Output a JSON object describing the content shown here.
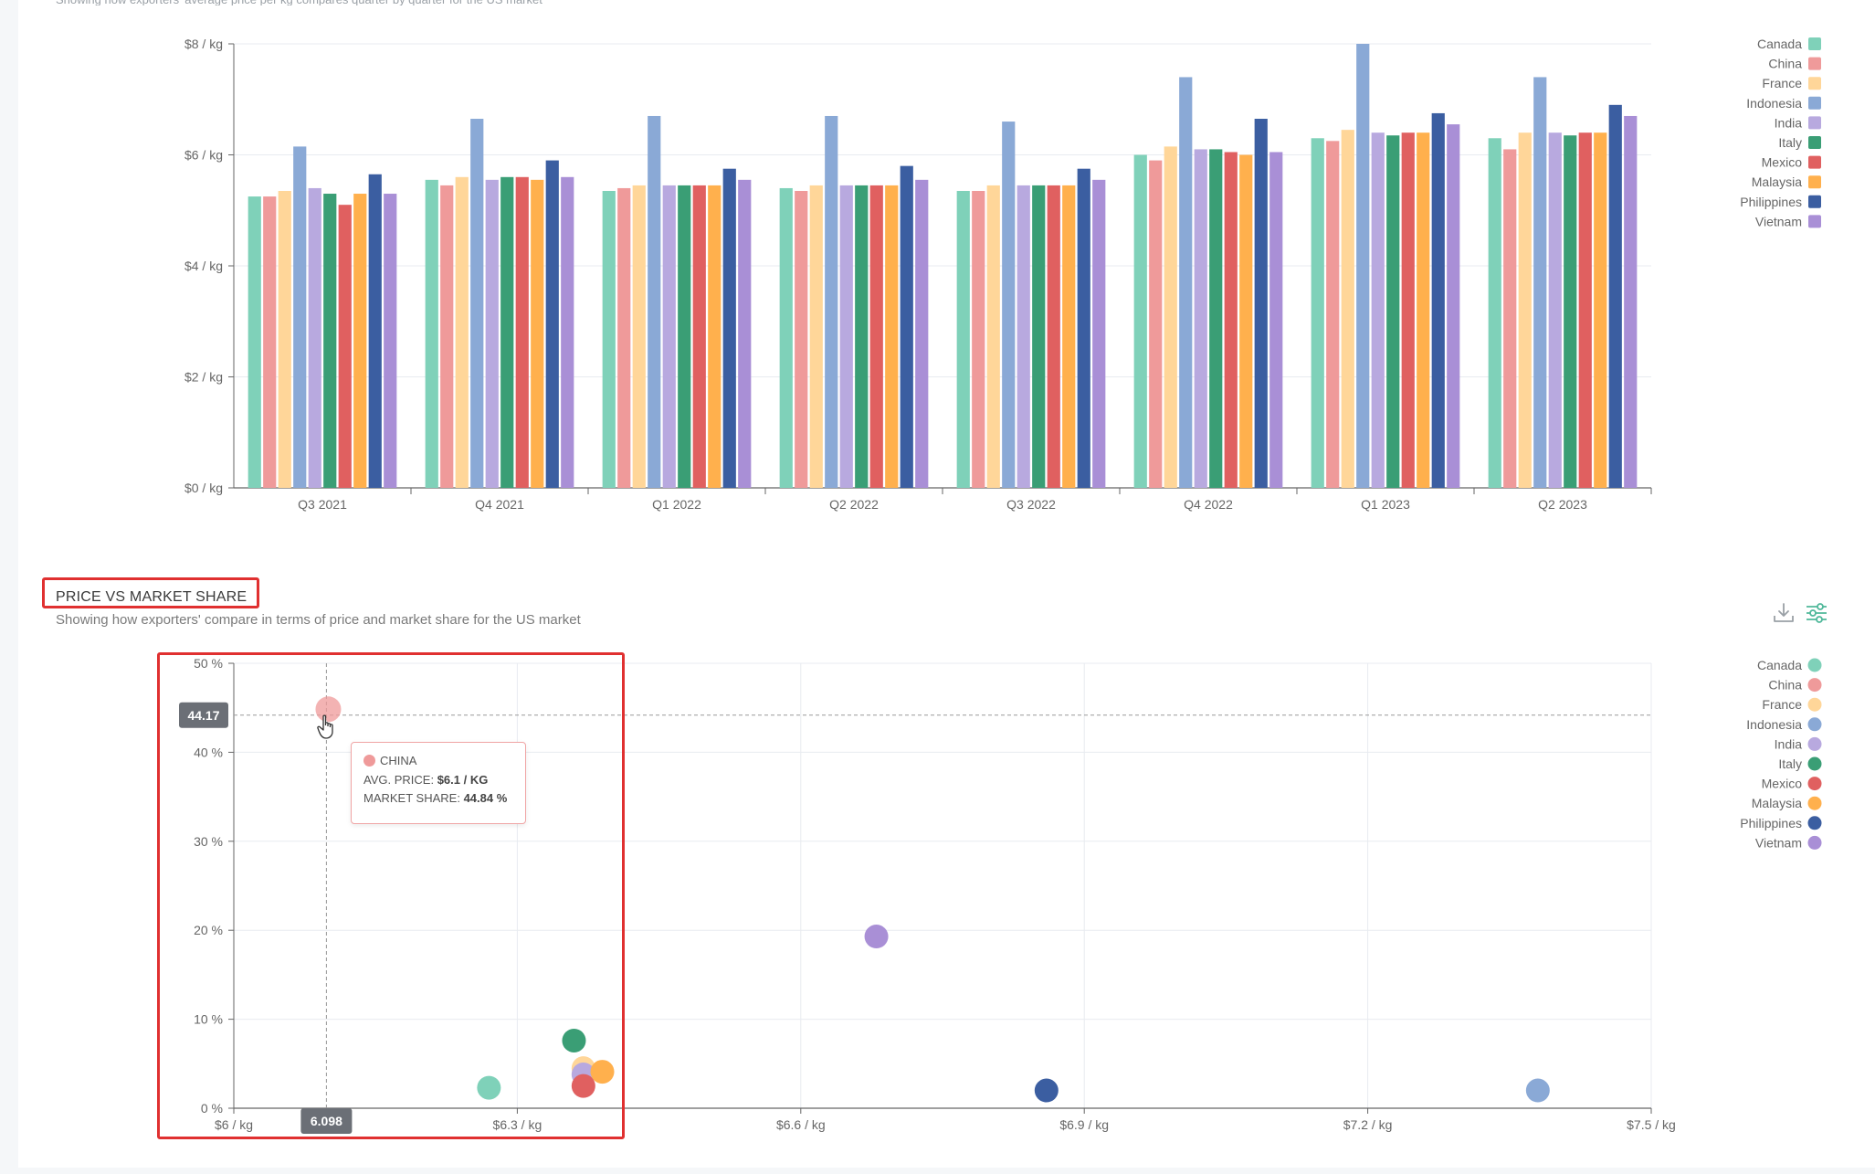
{
  "page": {
    "top_caption": "Showing how exporters' average price per kg compares quarter by quarter for the US market"
  },
  "countries": [
    {
      "name": "Canada",
      "color": "#7fd1b9"
    },
    {
      "name": "China",
      "color": "#ef9a9a"
    },
    {
      "name": "France",
      "color": "#ffd699"
    },
    {
      "name": "Indonesia",
      "color": "#8aa9d6"
    },
    {
      "name": "India",
      "color": "#b8a9df"
    },
    {
      "name": "Italy",
      "color": "#3a9e75"
    },
    {
      "name": "Mexico",
      "color": "#e06060"
    },
    {
      "name": "Malaysia",
      "color": "#ffb04d"
    },
    {
      "name": "Philippines",
      "color": "#3b5ea1"
    },
    {
      "name": "Vietnam",
      "color": "#a98fd6"
    }
  ],
  "bar_section": {
    "y_ticks": [
      "$0 / kg",
      "$2 / kg",
      "$4 / kg",
      "$6 / kg",
      "$8 / kg"
    ]
  },
  "scatter_section": {
    "title": "PRICE VS MARKET SHARE",
    "subtitle": "Showing how exporters' compare in terms of price and market share for the US market",
    "x_ticks": [
      "$6 / kg",
      "$6.3 / kg",
      "$6.6 / kg",
      "$6.9 / kg",
      "$7.2 / kg",
      "$7.5 / kg"
    ],
    "y_ticks": [
      "0 %",
      "10 %",
      "20 %",
      "30 %",
      "40 %",
      "50 %"
    ],
    "crosshair": {
      "x_label": "6.098",
      "y_label": "44.17"
    },
    "tooltip": {
      "country": "CHINA",
      "price_label": "AVG. PRICE:",
      "price_value": "$6.1 / KG",
      "share_label": "MARKET SHARE:",
      "share_value": "44.84 %"
    },
    "toolbar": {
      "download_icon": "download-icon",
      "settings_icon": "sliders-icon"
    }
  },
  "chart_data": [
    {
      "type": "bar",
      "categories": [
        "Q3 2021",
        "Q4 2021",
        "Q1 2022",
        "Q2 2022",
        "Q3 2022",
        "Q4 2022",
        "Q1 2023",
        "Q2 2023"
      ],
      "ylim": [
        0,
        8
      ],
      "grid": true,
      "legend": "right",
      "series": [
        {
          "name": "Canada",
          "values": [
            5.25,
            5.55,
            5.35,
            5.4,
            5.35,
            6.0,
            6.3,
            6.3
          ]
        },
        {
          "name": "China",
          "values": [
            5.25,
            5.45,
            5.4,
            5.35,
            5.35,
            5.9,
            6.25,
            6.1
          ]
        },
        {
          "name": "France",
          "values": [
            5.35,
            5.6,
            5.45,
            5.45,
            5.45,
            6.15,
            6.45,
            6.4
          ]
        },
        {
          "name": "Indonesia",
          "values": [
            6.15,
            6.65,
            6.7,
            6.7,
            6.6,
            7.4,
            8.0,
            7.4
          ]
        },
        {
          "name": "India",
          "values": [
            5.4,
            5.55,
            5.45,
            5.45,
            5.45,
            6.1,
            6.4,
            6.4
          ]
        },
        {
          "name": "Italy",
          "values": [
            5.3,
            5.6,
            5.45,
            5.45,
            5.45,
            6.1,
            6.35,
            6.35
          ]
        },
        {
          "name": "Mexico",
          "values": [
            5.1,
            5.6,
            5.45,
            5.45,
            5.45,
            6.05,
            6.4,
            6.4
          ]
        },
        {
          "name": "Malaysia",
          "values": [
            5.3,
            5.55,
            5.45,
            5.45,
            5.45,
            6.0,
            6.4,
            6.4
          ]
        },
        {
          "name": "Philippines",
          "values": [
            5.65,
            5.9,
            5.75,
            5.8,
            5.75,
            6.65,
            6.75,
            6.9
          ]
        },
        {
          "name": "Vietnam",
          "values": [
            5.3,
            5.6,
            5.55,
            5.55,
            5.55,
            6.05,
            6.55,
            6.7
          ]
        }
      ]
    },
    {
      "type": "scatter",
      "xlim": [
        6.0,
        7.5
      ],
      "ylim": [
        0,
        50
      ],
      "grid": true,
      "legend": "right",
      "points": [
        {
          "name": "Canada",
          "x": 6.27,
          "y": 2.3
        },
        {
          "name": "China",
          "x": 6.1,
          "y": 44.84
        },
        {
          "name": "France",
          "x": 6.37,
          "y": 4.5
        },
        {
          "name": "Indonesia",
          "x": 7.38,
          "y": 2.0
        },
        {
          "name": "India",
          "x": 6.37,
          "y": 3.8
        },
        {
          "name": "Italy",
          "x": 6.36,
          "y": 7.6
        },
        {
          "name": "Mexico",
          "x": 6.37,
          "y": 2.5
        },
        {
          "name": "Malaysia",
          "x": 6.39,
          "y": 4.1
        },
        {
          "name": "Philippines",
          "x": 6.86,
          "y": 2.0
        },
        {
          "name": "Vietnam",
          "x": 6.68,
          "y": 19.3
        }
      ]
    }
  ]
}
